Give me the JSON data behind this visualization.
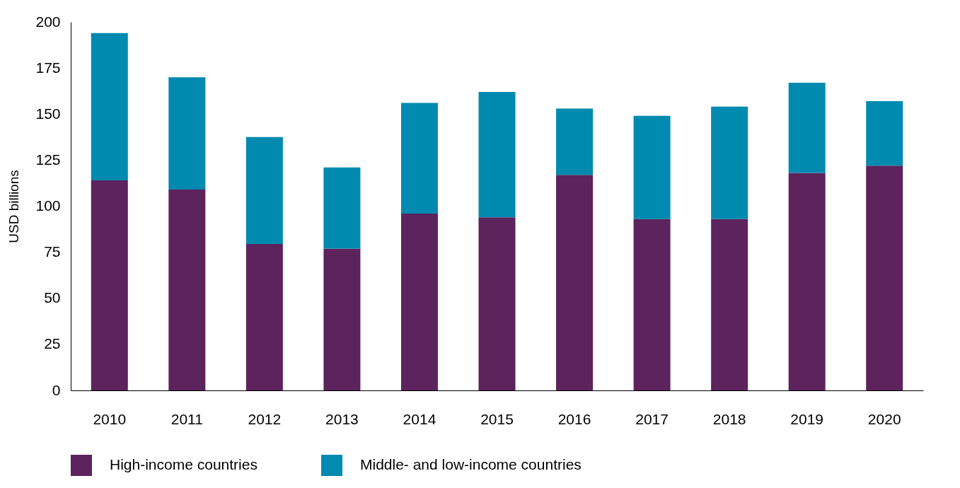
{
  "chart_data": {
    "type": "bar",
    "stacked": true,
    "ylabel": "USD billions",
    "categories": [
      "2010",
      "2011",
      "2012",
      "2013",
      "2014",
      "2015",
      "2016",
      "2017",
      "2018",
      "2019",
      "2020"
    ],
    "series": [
      {
        "name": "High-income countries",
        "color": "#5c235c",
        "values": [
          114,
          109,
          79.5,
          77,
          96,
          94,
          117,
          93,
          93,
          118,
          122
        ]
      },
      {
        "name": "Middle- and low-income countries",
        "color": "#008ab0",
        "values": [
          80,
          61,
          58,
          44,
          60,
          68,
          36,
          56,
          61,
          49,
          35
        ]
      }
    ],
    "ylim": [
      0,
      200
    ],
    "yticks": [
      0,
      25,
      50,
      75,
      100,
      125,
      150,
      175,
      200
    ],
    "grid": false,
    "legend": "bottom"
  }
}
